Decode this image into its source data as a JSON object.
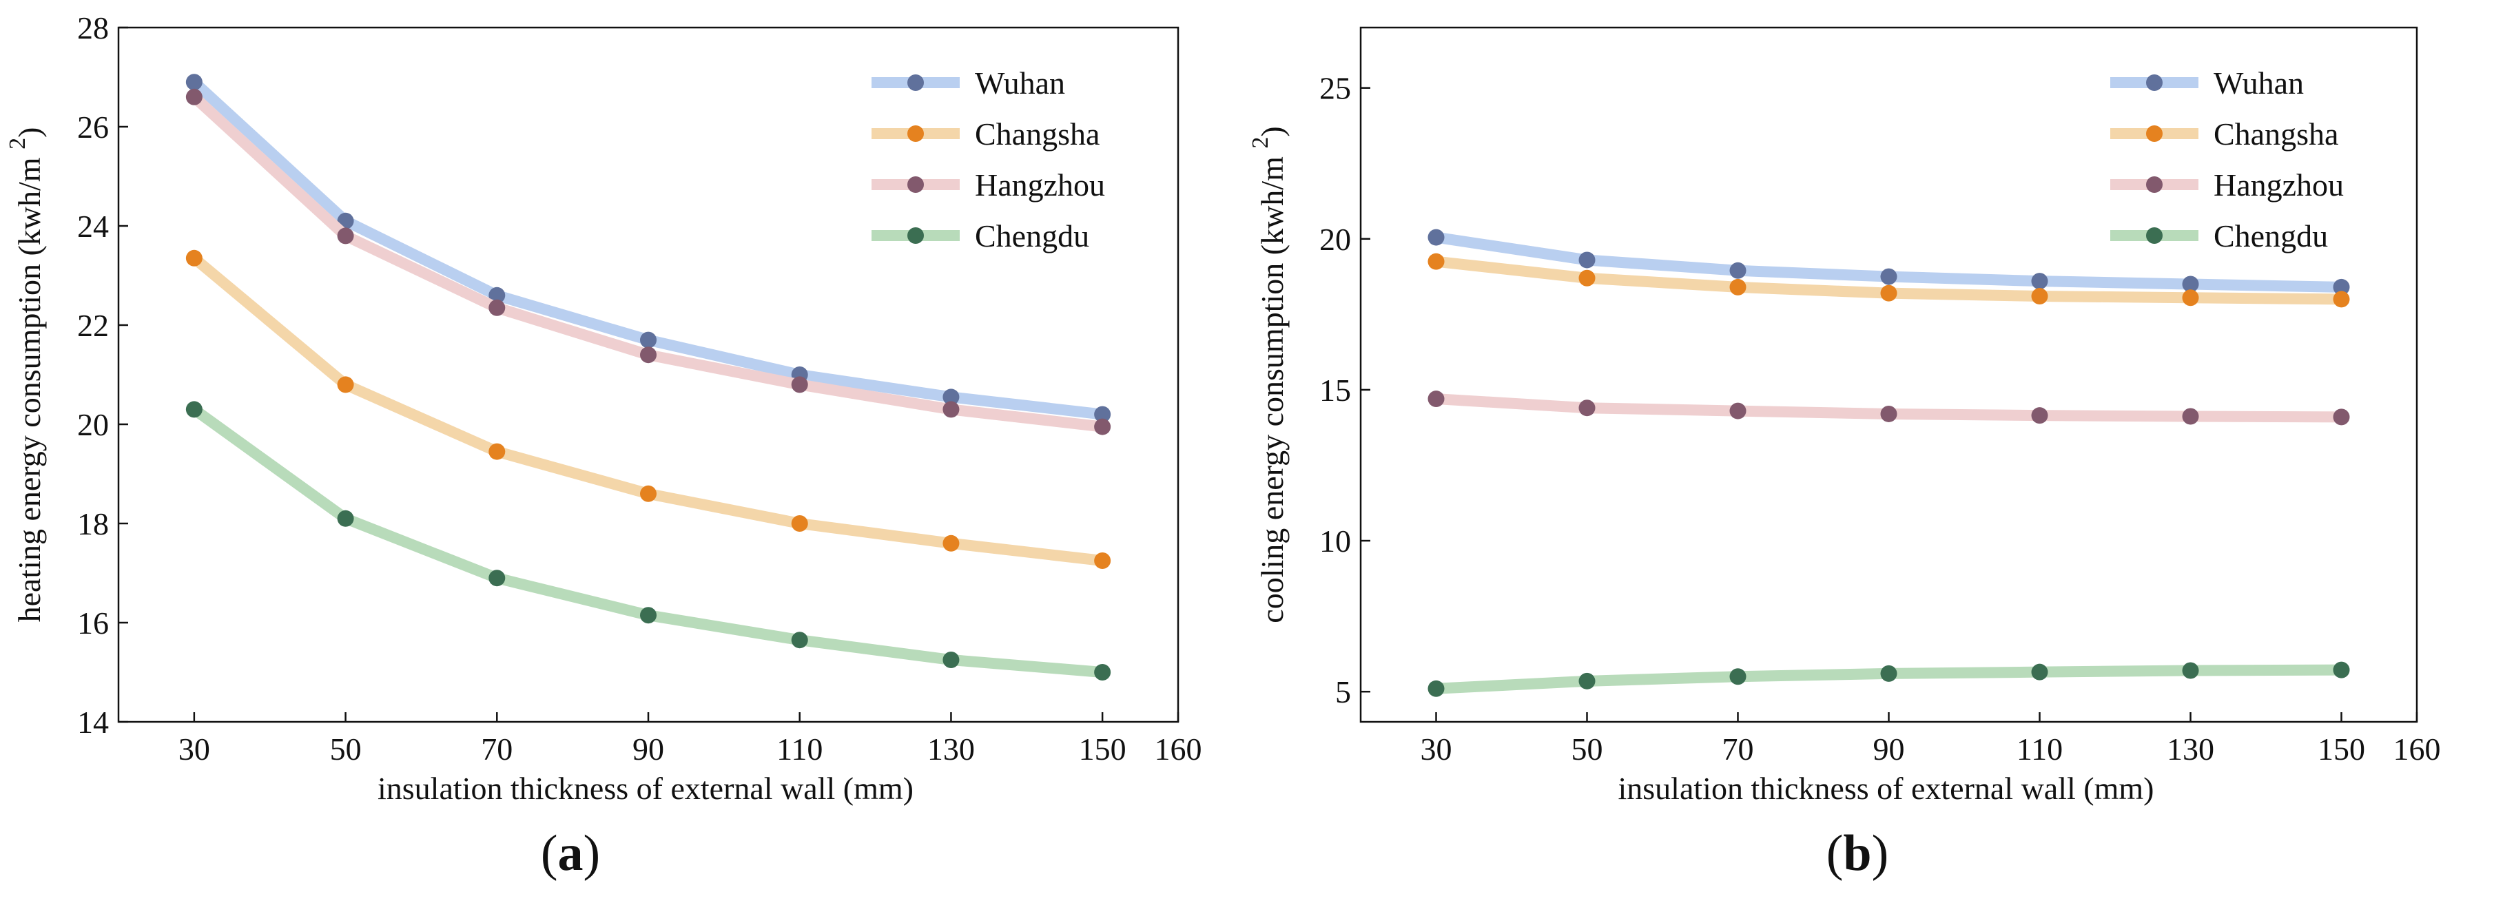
{
  "chart_data": [
    {
      "type": "line",
      "panel_label": "a",
      "xlabel": "insulation thickness of external wall (mm)",
      "ylabel": "heating energy consumption (kwh/m",
      "ylabel_sup": "2",
      "ylabel_close": ")",
      "xlim": [
        20,
        160
      ],
      "ylim": [
        14,
        28
      ],
      "xticks": [
        30,
        50,
        70,
        90,
        110,
        130,
        150,
        160
      ],
      "yticks": [
        14,
        16,
        18,
        20,
        22,
        24,
        26,
        28
      ],
      "x": [
        30,
        50,
        70,
        90,
        110,
        130,
        150
      ],
      "legend_position": "top-right",
      "series": [
        {
          "name": "Wuhan",
          "line_color": "#b9cff0",
          "marker_color": "#60719c",
          "values": [
            26.9,
            24.1,
            22.6,
            21.7,
            21.0,
            20.55,
            20.2
          ]
        },
        {
          "name": "Changsha",
          "line_color": "#f4d6a9",
          "marker_color": "#e5821f",
          "values": [
            23.35,
            20.8,
            19.45,
            18.6,
            18.0,
            17.6,
            17.25
          ]
        },
        {
          "name": "Hangzhou",
          "line_color": "#efcfd0",
          "marker_color": "#82596d",
          "values": [
            26.6,
            23.8,
            22.35,
            21.4,
            20.8,
            20.3,
            19.95
          ]
        },
        {
          "name": "Chengdu",
          "line_color": "#b8dbba",
          "marker_color": "#3b6e52",
          "values": [
            20.3,
            18.1,
            16.9,
            16.15,
            15.65,
            15.25,
            15.0
          ]
        }
      ]
    },
    {
      "type": "line",
      "panel_label": "b",
      "xlabel": "insulation thickness of external wall (mm)",
      "ylabel": "cooling energy consumption (kwh/m",
      "ylabel_sup": "2",
      "ylabel_close": ")",
      "xlim": [
        20,
        160
      ],
      "ylim": [
        4,
        27
      ],
      "xticks": [
        30,
        50,
        70,
        90,
        110,
        130,
        150,
        160
      ],
      "yticks": [
        5,
        10,
        15,
        20,
        25
      ],
      "x": [
        30,
        50,
        70,
        90,
        110,
        130,
        150
      ],
      "legend_position": "top-right",
      "series": [
        {
          "name": "Wuhan",
          "line_color": "#b9cff0",
          "marker_color": "#60719c",
          "values": [
            20.05,
            19.3,
            18.95,
            18.75,
            18.6,
            18.5,
            18.4
          ]
        },
        {
          "name": "Changsha",
          "line_color": "#f4d6a9",
          "marker_color": "#e5821f",
          "values": [
            19.25,
            18.7,
            18.4,
            18.2,
            18.1,
            18.05,
            18.0
          ]
        },
        {
          "name": "Hangzhou",
          "line_color": "#efcfd0",
          "marker_color": "#82596d",
          "values": [
            14.7,
            14.4,
            14.3,
            14.2,
            14.15,
            14.12,
            14.1
          ]
        },
        {
          "name": "Chengdu",
          "line_color": "#b8dbba",
          "marker_color": "#3b6e52",
          "values": [
            5.1,
            5.35,
            5.5,
            5.6,
            5.65,
            5.7,
            5.72
          ]
        }
      ]
    }
  ],
  "captions": [
    {
      "open": "(",
      "label": "a",
      "close": ")"
    },
    {
      "open": "(",
      "label": "b",
      "close": ")"
    }
  ]
}
